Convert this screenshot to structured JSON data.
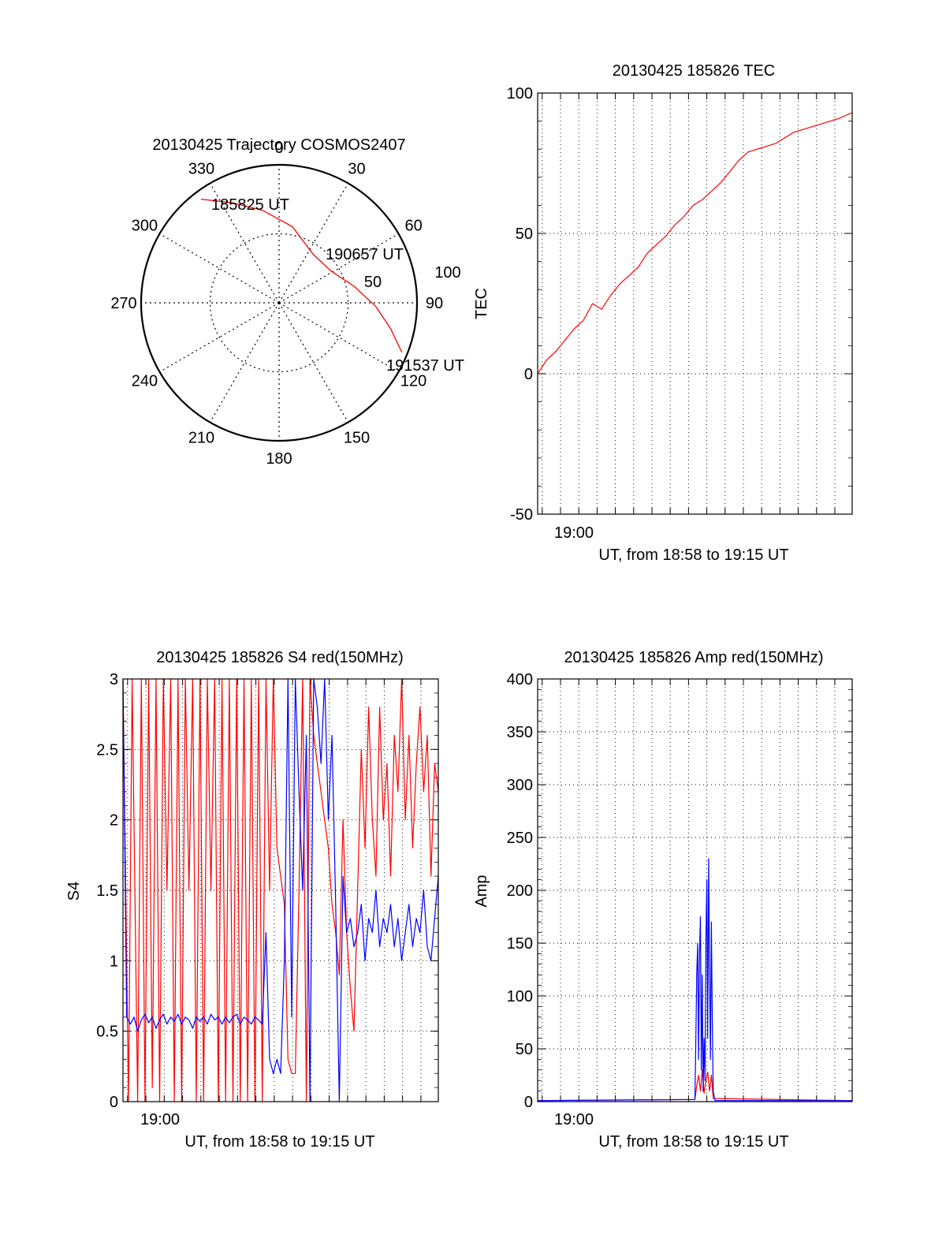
{
  "colors": {
    "red": "#ff0000",
    "blue": "#0000ff",
    "axis": "#000000",
    "grid": "#000000"
  },
  "chart_data": [
    {
      "id": "polar",
      "type": "polar",
      "title": "20130425 Trajectory COSMOS2407",
      "azimuth_labels": [
        "0",
        "30",
        "60",
        "90",
        "120",
        "150",
        "180",
        "210",
        "240",
        "270",
        "300",
        "330"
      ],
      "ring_labels": [
        "50",
        "100"
      ],
      "track": {
        "color": "red",
        "points": [
          {
            "az": 323,
            "r": 94
          },
          {
            "az": 335,
            "r": 80
          },
          {
            "az": 350,
            "r": 68
          },
          {
            "az": 10,
            "r": 56
          },
          {
            "az": 35,
            "r": 43
          },
          {
            "az": 58,
            "r": 44
          },
          {
            "az": 78,
            "r": 56
          },
          {
            "az": 92,
            "r": 70
          },
          {
            "az": 103,
            "r": 83
          },
          {
            "az": 112,
            "r": 96
          }
        ]
      },
      "annotations": [
        {
          "text": "185825 UT",
          "az": 323,
          "r": 94
        },
        {
          "text": "190657 UT",
          "az": 52,
          "r": 59
        },
        {
          "text": "191537 UT",
          "az": 112,
          "r": 96
        }
      ]
    },
    {
      "id": "tec",
      "type": "line",
      "title": "20130425 185826 TEC",
      "xlabel": "UT, from 18:58 to 19:15 UT",
      "ylabel": "TEC",
      "xlim": [
        0,
        17.2
      ],
      "ylim": [
        -50,
        100
      ],
      "yticks": [
        "-50",
        "0",
        "50",
        "100"
      ],
      "xtick_labels": [
        {
          "x": 1.0,
          "label": "19:00"
        }
      ],
      "series": [
        {
          "color": "red",
          "x": [
            0.0,
            0.5,
            1.0,
            1.5,
            2.0,
            2.5,
            3.0,
            3.5,
            4.0,
            4.5,
            5.0,
            5.5,
            6.0,
            6.5,
            7.0,
            7.5,
            8.0,
            8.5,
            9.0,
            9.5,
            10.0,
            10.5,
            11.0,
            11.5,
            12.0,
            12.5,
            13.0,
            13.5,
            14.0,
            14.5,
            15.0,
            15.5,
            16.0,
            16.5,
            17.2
          ],
          "y": [
            0,
            5,
            8,
            12,
            16,
            19,
            25,
            23,
            28,
            32,
            35,
            38,
            43,
            46,
            49,
            53,
            56,
            60,
            62,
            65,
            68,
            72,
            76,
            79,
            80,
            81,
            82,
            84,
            86,
            87,
            88,
            89,
            90,
            91,
            93
          ]
        }
      ]
    },
    {
      "id": "s4",
      "type": "line",
      "title": "20130425 185826 S4 red(150MHz)",
      "xlabel": "UT, from 18:58 to 19:15 UT",
      "ylabel": "S4",
      "xlim": [
        0,
        17.2
      ],
      "ylim": [
        0,
        3
      ],
      "yticks": [
        "0",
        "0.5",
        "1",
        "1.5",
        "2",
        "2.5",
        "3"
      ],
      "xtick_labels": [
        {
          "x": 1.0,
          "label": "19:00"
        }
      ],
      "series": [
        {
          "color": "red",
          "x": [
            0.0,
            0.3,
            0.5,
            0.8,
            1.0,
            1.2,
            1.4,
            1.6,
            1.8,
            2.0,
            2.2,
            2.4,
            2.6,
            2.8,
            3.0,
            3.2,
            3.4,
            3.6,
            3.8,
            4.0,
            4.2,
            4.4,
            4.6,
            4.8,
            5.0,
            5.2,
            5.4,
            5.6,
            5.8,
            6.0,
            6.2,
            6.4,
            6.6,
            6.8,
            7.0,
            7.2,
            7.4,
            7.6,
            7.8,
            8.0,
            8.2,
            8.4,
            8.6,
            8.8,
            9.0,
            9.2,
            9.4,
            9.6,
            9.8,
            10.0,
            10.2,
            10.4,
            10.6,
            10.8,
            11.0,
            11.2,
            11.4,
            11.6,
            11.8,
            12.0,
            12.2,
            12.4,
            12.6,
            12.8,
            13.0,
            13.2,
            13.4,
            13.6,
            13.8,
            14.0,
            14.2,
            14.4,
            14.6,
            14.8,
            15.0,
            15.2,
            15.4,
            15.6,
            15.8,
            16.0,
            16.2,
            16.4,
            16.6,
            16.8,
            17.0,
            17.2
          ],
          "y": [
            3.0,
            0.0,
            3.0,
            0.0,
            3.0,
            0.0,
            3.0,
            0.1,
            3.0,
            0.0,
            3.0,
            1.5,
            3.0,
            0.0,
            3.0,
            0.0,
            3.0,
            1.5,
            3.0,
            0.0,
            3.0,
            0.0,
            3.0,
            1.5,
            3.0,
            0.0,
            3.0,
            0.0,
            3.0,
            0.0,
            3.0,
            0.0,
            3.0,
            0.0,
            3.0,
            0.0,
            3.0,
            0.0,
            3.0,
            1.5,
            3.0,
            1.8,
            1.6,
            1.4,
            0.3,
            0.2,
            0.2,
            1.5,
            3.0,
            0.0,
            3.0,
            2.6,
            2.4,
            2.2,
            2.0,
            1.8,
            1.4,
            1.2,
            0.9,
            2.0,
            1.2,
            0.8,
            0.5,
            1.5,
            2.5,
            1.8,
            2.8,
            2.0,
            1.6,
            2.8,
            2.0,
            2.4,
            1.6,
            2.6,
            2.2,
            3.0,
            2.0,
            2.6,
            1.8,
            2.4,
            2.8,
            2.2,
            2.6,
            1.6,
            2.4,
            2.2
          ]
        },
        {
          "color": "blue",
          "x": [
            0.0,
            0.2,
            0.4,
            0.6,
            0.8,
            1.0,
            1.2,
            1.4,
            1.6,
            1.8,
            2.0,
            2.2,
            2.4,
            2.6,
            2.8,
            3.0,
            3.2,
            3.4,
            3.6,
            3.8,
            4.0,
            4.2,
            4.4,
            4.6,
            4.8,
            5.0,
            5.2,
            5.4,
            5.6,
            5.8,
            6.0,
            6.2,
            6.4,
            6.6,
            6.8,
            7.0,
            7.2,
            7.4,
            7.6,
            7.8,
            8.0,
            8.2,
            8.4,
            8.6,
            8.8,
            9.0,
            9.2,
            9.4,
            9.6,
            9.8,
            10.0,
            10.2,
            10.4,
            10.6,
            10.8,
            11.0,
            11.2,
            11.4,
            11.6,
            11.8,
            12.0,
            12.2,
            12.4,
            12.6,
            12.8,
            13.0,
            13.2,
            13.4,
            13.6,
            13.8,
            14.0,
            14.2,
            14.4,
            14.6,
            14.8,
            15.0,
            15.2,
            15.4,
            15.6,
            15.8,
            16.0,
            16.2,
            16.4,
            16.6,
            16.8,
            17.0,
            17.2
          ],
          "y": [
            3.0,
            0.6,
            0.55,
            0.6,
            0.5,
            0.58,
            0.62,
            0.56,
            0.6,
            0.52,
            0.58,
            0.62,
            0.55,
            0.6,
            0.57,
            0.62,
            0.55,
            0.6,
            0.58,
            0.52,
            0.6,
            0.57,
            0.6,
            0.55,
            0.62,
            0.58,
            0.6,
            0.55,
            0.6,
            0.56,
            0.6,
            0.62,
            0.55,
            0.6,
            0.58,
            0.55,
            0.6,
            0.58,
            0.55,
            1.2,
            0.3,
            0.2,
            0.3,
            0.2,
            1.0,
            3.0,
            0.6,
            3.0,
            2.2,
            1.5,
            2.6,
            0.0,
            3.0,
            2.8,
            2.4,
            3.0,
            2.0,
            2.6,
            1.4,
            0.0,
            1.6,
            1.2,
            1.3,
            1.1,
            1.2,
            1.4,
            1.0,
            1.3,
            1.2,
            1.5,
            1.1,
            1.3,
            1.2,
            1.4,
            1.1,
            1.3,
            1.0,
            1.2,
            1.4,
            1.1,
            1.3,
            1.2,
            1.5,
            1.1,
            1.0,
            1.3,
            1.6
          ]
        }
      ]
    },
    {
      "id": "amp",
      "type": "line",
      "title": "20130425 185826 Amp red(150MHz)",
      "xlabel": "UT, from 18:58 to 19:15 UT",
      "ylabel": "Amp",
      "xlim": [
        0,
        17.2
      ],
      "ylim": [
        0,
        400
      ],
      "yticks": [
        "0",
        "50",
        "100",
        "150",
        "200",
        "250",
        "300",
        "350",
        "400"
      ],
      "xtick_labels": [
        {
          "x": 1.0,
          "label": "19:00"
        }
      ],
      "series": [
        {
          "color": "red",
          "x": [
            0.0,
            8.6,
            8.7,
            8.8,
            8.9,
            9.0,
            9.1,
            9.2,
            9.3,
            9.4,
            9.5,
            9.6,
            17.2
          ],
          "y": [
            1,
            2,
            15,
            25,
            10,
            30,
            8,
            20,
            28,
            10,
            25,
            3,
            1
          ]
        },
        {
          "color": "blue",
          "x": [
            0.0,
            8.6,
            8.65,
            8.7,
            8.75,
            8.8,
            8.85,
            8.9,
            8.95,
            9.0,
            9.05,
            9.1,
            9.15,
            9.2,
            9.25,
            9.3,
            9.35,
            9.4,
            9.45,
            9.5,
            9.55,
            9.6,
            9.7,
            17.2
          ],
          "y": [
            1,
            2,
            60,
            120,
            150,
            40,
            140,
            175,
            30,
            120,
            10,
            60,
            20,
            150,
            210,
            60,
            230,
            120,
            40,
            170,
            80,
            10,
            1,
            1
          ]
        }
      ]
    }
  ]
}
